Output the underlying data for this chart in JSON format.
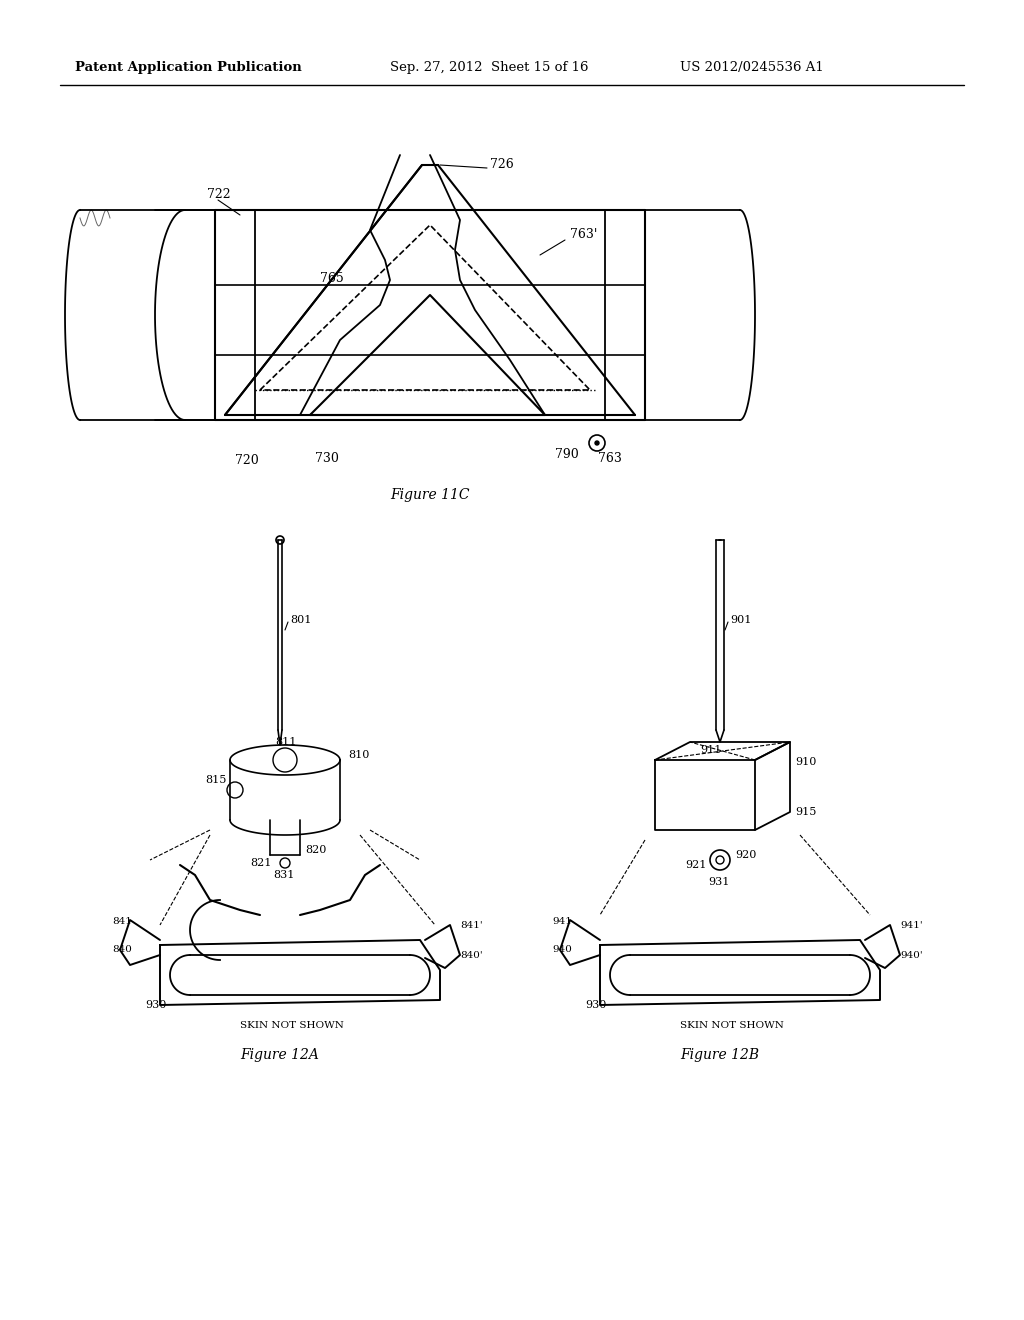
{
  "bg_color": "#ffffff",
  "header_left": "Patent Application Publication",
  "header_mid": "Sep. 27, 2012  Sheet 15 of 16",
  "header_right": "US 2012/0245536 A1",
  "fig11c_caption": "Figure 11C",
  "fig12a_caption": "Figure 12A",
  "fig12b_caption": "Figure 12B",
  "skin_not_shown": "SKIN NOT SHOWN",
  "text_color": "#000000"
}
